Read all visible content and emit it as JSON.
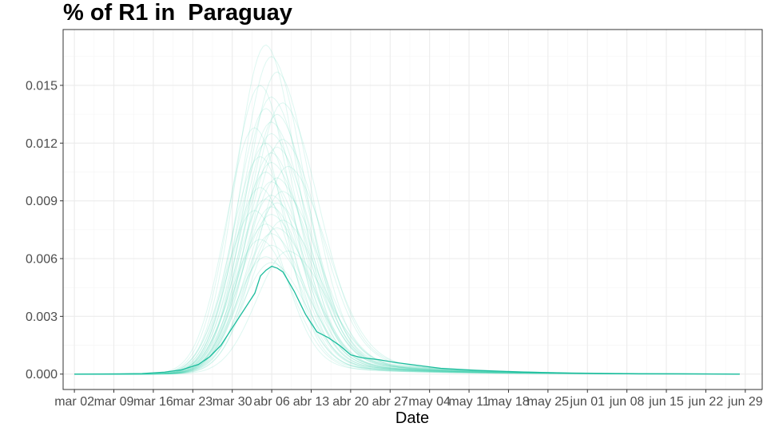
{
  "chart_data": {
    "type": "line",
    "title": "% of R1 in  Paraguay",
    "xlabel": "Date",
    "ylabel": "",
    "x_range": [
      "2020-02-29",
      "2020-07-02"
    ],
    "ylim": [
      -0.0008,
      0.0179
    ],
    "x_tick_labels": [
      {
        "date": "2020-03-02",
        "label": "mar 02"
      },
      {
        "date": "2020-03-09",
        "label": "mar 09"
      },
      {
        "date": "2020-03-16",
        "label": "mar 16"
      },
      {
        "date": "2020-03-23",
        "label": "mar 23"
      },
      {
        "date": "2020-03-30",
        "label": "mar 30"
      },
      {
        "date": "2020-04-06",
        "label": "abr 06"
      },
      {
        "date": "2020-04-13",
        "label": "abr 13"
      },
      {
        "date": "2020-04-20",
        "label": "abr 20"
      },
      {
        "date": "2020-04-27",
        "label": "abr 27"
      },
      {
        "date": "2020-05-04",
        "label": "may 04"
      },
      {
        "date": "2020-05-11",
        "label": "may 11"
      },
      {
        "date": "2020-05-18",
        "label": "may 18"
      },
      {
        "date": "2020-05-25",
        "label": "may 25"
      },
      {
        "date": "2020-06-01",
        "label": "jun 01"
      },
      {
        "date": "2020-06-08",
        "label": "jun 08"
      },
      {
        "date": "2020-06-15",
        "label": "jun 15"
      },
      {
        "date": "2020-06-22",
        "label": "jun 22"
      },
      {
        "date": "2020-06-29",
        "label": "jun 29"
      }
    ],
    "y_ticks": [
      {
        "value": 0.0,
        "label": "0.000"
      },
      {
        "value": 0.003,
        "label": "0.003"
      },
      {
        "value": 0.006,
        "label": "0.006"
      },
      {
        "value": 0.009,
        "label": "0.009"
      },
      {
        "value": 0.012,
        "label": "0.012"
      },
      {
        "value": 0.015,
        "label": "0.015"
      }
    ],
    "grid": true,
    "legend": "none",
    "colors": {
      "line": "#1abc9c",
      "simulation": "#48d1b0",
      "grid_major": "#ebebeb",
      "grid_minor": "#f5f5f5",
      "border": "#333333"
    },
    "x_start": "2020-03-02",
    "x_end": "2020-06-28",
    "main_series": {
      "points": [
        [
          "2020-03-02",
          0.0
        ],
        [
          "2020-03-10",
          1e-05
        ],
        [
          "2020-03-14",
          3e-05
        ],
        [
          "2020-03-18",
          0.0001
        ],
        [
          "2020-03-21",
          0.00022
        ],
        [
          "2020-03-24",
          0.0005
        ],
        [
          "2020-03-26",
          0.0009
        ],
        [
          "2020-03-28",
          0.0015
        ],
        [
          "2020-03-30",
          0.0024
        ],
        [
          "2020-04-01",
          0.0033
        ],
        [
          "2020-04-03",
          0.0042
        ],
        [
          "2020-04-04",
          0.0051
        ],
        [
          "2020-04-05",
          0.0054
        ],
        [
          "2020-04-06",
          0.0056
        ],
        [
          "2020-04-07",
          0.0055
        ],
        [
          "2020-04-08",
          0.0053
        ],
        [
          "2020-04-10",
          0.0043
        ],
        [
          "2020-04-12",
          0.0031
        ],
        [
          "2020-04-14",
          0.0022
        ],
        [
          "2020-04-16",
          0.0019
        ],
        [
          "2020-04-18",
          0.0015
        ],
        [
          "2020-04-20",
          0.001
        ],
        [
          "2020-04-22",
          0.00085
        ],
        [
          "2020-04-25",
          0.00075
        ],
        [
          "2020-04-28",
          0.0006
        ],
        [
          "2020-05-02",
          0.00045
        ],
        [
          "2020-05-06",
          0.0003
        ],
        [
          "2020-05-12",
          0.0002
        ],
        [
          "2020-05-20",
          0.00011
        ],
        [
          "2020-05-30",
          4e-05
        ],
        [
          "2020-06-10",
          1e-05
        ],
        [
          "2020-06-28",
          0.0
        ]
      ]
    },
    "simulations": {
      "peaks": [
        0.0171,
        0.0165,
        0.0157,
        0.015,
        0.0144,
        0.0141,
        0.0138,
        0.0135,
        0.0131,
        0.0128,
        0.0125,
        0.0122,
        0.012,
        0.0118,
        0.0115,
        0.0113,
        0.011,
        0.0108,
        0.0105,
        0.0102,
        0.01,
        0.0097,
        0.0095,
        0.0093,
        0.0091,
        0.0089,
        0.0087,
        0.0085,
        0.0083,
        0.008,
        0.0078,
        0.0076,
        0.0073,
        0.007,
        0.0067,
        0.0064,
        0.0061,
        0.0058
      ],
      "peak_dates": [
        "2020-04-05",
        "2020-04-06",
        "2020-04-07",
        "2020-04-04",
        "2020-04-06",
        "2020-04-08",
        "2020-04-05",
        "2020-04-07",
        "2020-04-06",
        "2020-04-03",
        "2020-04-06",
        "2020-04-08",
        "2020-04-05",
        "2020-04-07",
        "2020-04-06",
        "2020-04-04",
        "2020-04-06",
        "2020-04-09",
        "2020-04-05",
        "2020-04-07",
        "2020-04-06",
        "2020-04-04",
        "2020-04-08",
        "2020-04-06",
        "2020-04-05",
        "2020-04-07",
        "2020-04-06",
        "2020-04-03",
        "2020-04-06",
        "2020-04-08",
        "2020-04-05",
        "2020-04-07",
        "2020-04-06",
        "2020-04-04",
        "2020-04-06",
        "2020-04-09",
        "2020-04-05",
        "2020-04-06"
      ],
      "rise_widths_days": [
        7.5,
        7.6,
        7.7,
        7.4,
        7.8,
        7.9,
        7.5,
        7.6,
        7.8,
        7.3,
        7.6,
        7.9,
        7.5,
        7.7,
        7.6,
        7.4,
        7.8,
        8.0,
        7.5,
        7.7,
        7.6,
        7.4,
        7.9,
        7.6,
        7.5,
        7.7,
        7.6,
        7.3,
        7.8,
        7.9,
        7.5,
        7.7,
        7.6,
        7.4,
        7.8,
        8.0,
        7.5,
        7.6
      ],
      "decay_widths_days": [
        7.8,
        8.2,
        8.5,
        7.6,
        8.9,
        9.2,
        8.0,
        8.4,
        8.8,
        7.5,
        8.6,
        9.4,
        7.9,
        8.7,
        8.3,
        7.7,
        9.0,
        9.6,
        8.1,
        8.8,
        8.5,
        7.8,
        9.3,
        8.6,
        8.0,
        8.9,
        8.4,
        7.6,
        9.1,
        9.5,
        8.2,
        8.8,
        8.5,
        7.9,
        9.0,
        9.7,
        8.3,
        8.6
      ],
      "tail_fractions": [
        0.09,
        0.1,
        0.11,
        0.08,
        0.12,
        0.13,
        0.09,
        0.1,
        0.12,
        0.08,
        0.11,
        0.13,
        0.09,
        0.12,
        0.1,
        0.08,
        0.12,
        0.14,
        0.1,
        0.12,
        0.11,
        0.09,
        0.13,
        0.11,
        0.1,
        0.12,
        0.11,
        0.09,
        0.13,
        0.14,
        0.1,
        0.12,
        0.11,
        0.09,
        0.13,
        0.14,
        0.1,
        0.11
      ],
      "opacity": 0.18
    }
  }
}
